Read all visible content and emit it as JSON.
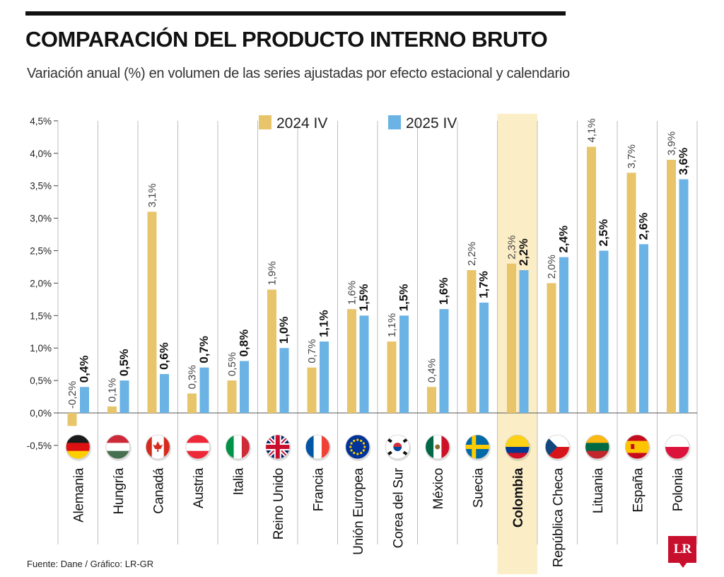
{
  "header": {
    "title": "COMPARACIÓN DEL PRODUCTO INTERNO BRUTO",
    "subtitle": "Variación anual (%) en volumen de las series ajustadas por efecto estacional y calendario"
  },
  "footer": {
    "source": "Fuente: Dane / Gráfico: LR-GR",
    "logo_text": "LR"
  },
  "colors": {
    "series_2024": "#e8c46a",
    "series_2025": "#6ab3e4",
    "highlight": "#fbedc6",
    "gridline": "#bdbdbd"
  },
  "chart_data": {
    "type": "bar",
    "title": "COMPARACIÓN DEL PRODUCTO INTERNO BRUTO",
    "subtitle": "Variación anual (%) en volumen de las series ajustadas por efecto estacional y calendario",
    "xlabel": "",
    "ylabel": "",
    "ylim": [
      -0.5,
      4.5
    ],
    "yticks": [
      -0.5,
      0.0,
      0.5,
      1.0,
      1.5,
      2.0,
      2.5,
      3.0,
      3.5,
      4.0,
      4.5
    ],
    "ytick_labels": [
      "-0,5%",
      "0,0%",
      "0,5%",
      "1,0%",
      "1,5%",
      "2,0%",
      "2,5%",
      "3,0%",
      "3,5%",
      "4,0%",
      "4,5%"
    ],
    "legend_position": "top-center",
    "highlighted_category": "Colombia",
    "categories": [
      "Alemania",
      "Hungría",
      "Canadá",
      "Austria",
      "Italia",
      "Reino Unido",
      "Francia",
      "Unión Europea",
      "Corea del Sur",
      "México",
      "Suecia",
      "Colombia",
      "República Checa",
      "Lituania",
      "España",
      "Polonia"
    ],
    "series": [
      {
        "name": "2024 IV",
        "color": "#e8c46a",
        "values": [
          -0.2,
          0.1,
          3.1,
          0.3,
          0.5,
          1.9,
          0.7,
          1.6,
          1.1,
          0.4,
          2.2,
          2.3,
          2.0,
          4.1,
          3.7,
          3.9
        ],
        "labels": [
          "-0,2%",
          "0,1%",
          "3,1%",
          "0,3%",
          "0,5%",
          "1,9%",
          "0,7%",
          "1,6%",
          "1,1%",
          "0,4%",
          "2,2%",
          "2,3%",
          "2,0%",
          "4,1%",
          "3,7%",
          "3,9%"
        ]
      },
      {
        "name": "2025 IV",
        "color": "#6ab3e4",
        "values": [
          0.4,
          0.5,
          0.6,
          0.7,
          0.8,
          1.0,
          1.1,
          1.5,
          1.5,
          1.6,
          1.7,
          2.2,
          2.4,
          2.5,
          2.6,
          3.6
        ],
        "labels": [
          "0,4%",
          "0,5%",
          "0,6%",
          "0,7%",
          "0,8%",
          "1,0%",
          "1,1%",
          "1,5%",
          "1,5%",
          "1,6%",
          "1,7%",
          "2,2%",
          "2,4%",
          "2,5%",
          "2,6%",
          "3,6%"
        ]
      }
    ],
    "flags": [
      "germany-flag-icon",
      "hungary-flag-icon",
      "canada-flag-icon",
      "austria-flag-icon",
      "italy-flag-icon",
      "uk-flag-icon",
      "france-flag-icon",
      "eu-flag-icon",
      "south-korea-flag-icon",
      "mexico-flag-icon",
      "sweden-flag-icon",
      "colombia-flag-icon",
      "czech-flag-icon",
      "lithuania-flag-icon",
      "spain-flag-icon",
      "poland-flag-icon"
    ]
  }
}
